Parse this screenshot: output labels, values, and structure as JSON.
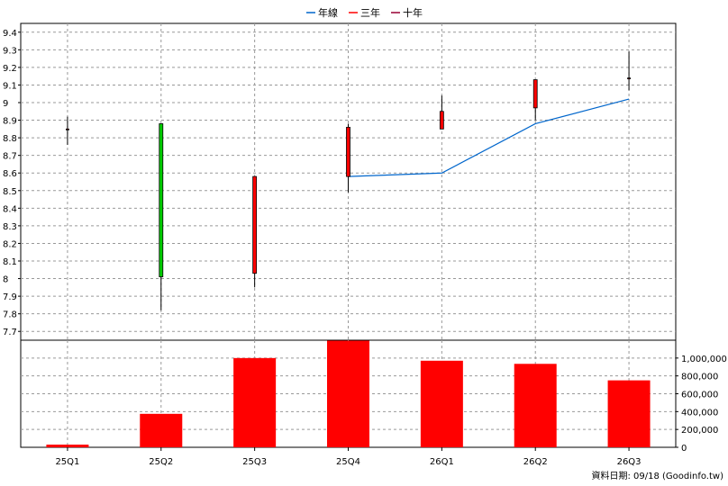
{
  "chart_data": [
    {
      "type": "candlestick",
      "legend": [
        {
          "label": "年線",
          "color": "#0066cc"
        },
        {
          "label": "三年",
          "color": "#ff0000"
        },
        {
          "label": "十年",
          "color": "#990033"
        }
      ],
      "categories": [
        "25Q1",
        "25Q2",
        "25Q3",
        "25Q4",
        "26Q1",
        "26Q2",
        "26Q3"
      ],
      "candles": [
        {
          "open": 8.85,
          "close": 8.85,
          "high": 8.92,
          "low": 8.76
        },
        {
          "open": 8.88,
          "close": 8.01,
          "high": 8.88,
          "low": 7.82
        },
        {
          "open": 8.03,
          "close": 8.58,
          "high": 8.58,
          "low": 7.95
        },
        {
          "open": 8.58,
          "close": 8.86,
          "high": 8.88,
          "low": 8.49
        },
        {
          "open": 8.85,
          "close": 8.95,
          "high": 9.04,
          "low": 8.85
        },
        {
          "open": 8.97,
          "close": 9.13,
          "high": 9.13,
          "low": 8.9
        },
        {
          "open": 9.14,
          "close": 9.14,
          "high": 9.29,
          "low": 9.07
        }
      ],
      "up_color": "#ff0000",
      "down_color": "#00cc00",
      "annual_line": {
        "name": "年線",
        "color": "#0066cc",
        "points": [
          [
            3,
            8.58
          ],
          [
            4,
            8.6
          ],
          [
            5,
            8.88
          ],
          [
            6,
            9.02
          ]
        ]
      },
      "y_ticks": [
        "7.7",
        "7.8",
        "7.9",
        "8",
        "8.1",
        "8.2",
        "8.3",
        "8.4",
        "8.5",
        "8.6",
        "8.7",
        "8.8",
        "8.9",
        "9",
        "9.1",
        "9.2",
        "9.3",
        "9.4"
      ],
      "ylim": [
        7.65,
        9.45
      ],
      "grid": true
    },
    {
      "type": "bar",
      "categories": [
        "25Q1",
        "25Q2",
        "25Q3",
        "25Q4",
        "26Q1",
        "26Q2",
        "26Q3"
      ],
      "values": [
        30000,
        375000,
        1000000,
        1195000,
        970000,
        935000,
        750000
      ],
      "color": "#ff0000",
      "y_ticks": [
        "0",
        "200,000",
        "400,000",
        "600,000",
        "800,000",
        "1,000,000"
      ],
      "y_tick_values": [
        0,
        200000,
        400000,
        600000,
        800000,
        1000000
      ],
      "ylim": [
        0,
        1200000
      ],
      "grid": true
    }
  ],
  "footer": {
    "source_text": "資料日期: 09/18  (Goodinfo.tw)"
  }
}
